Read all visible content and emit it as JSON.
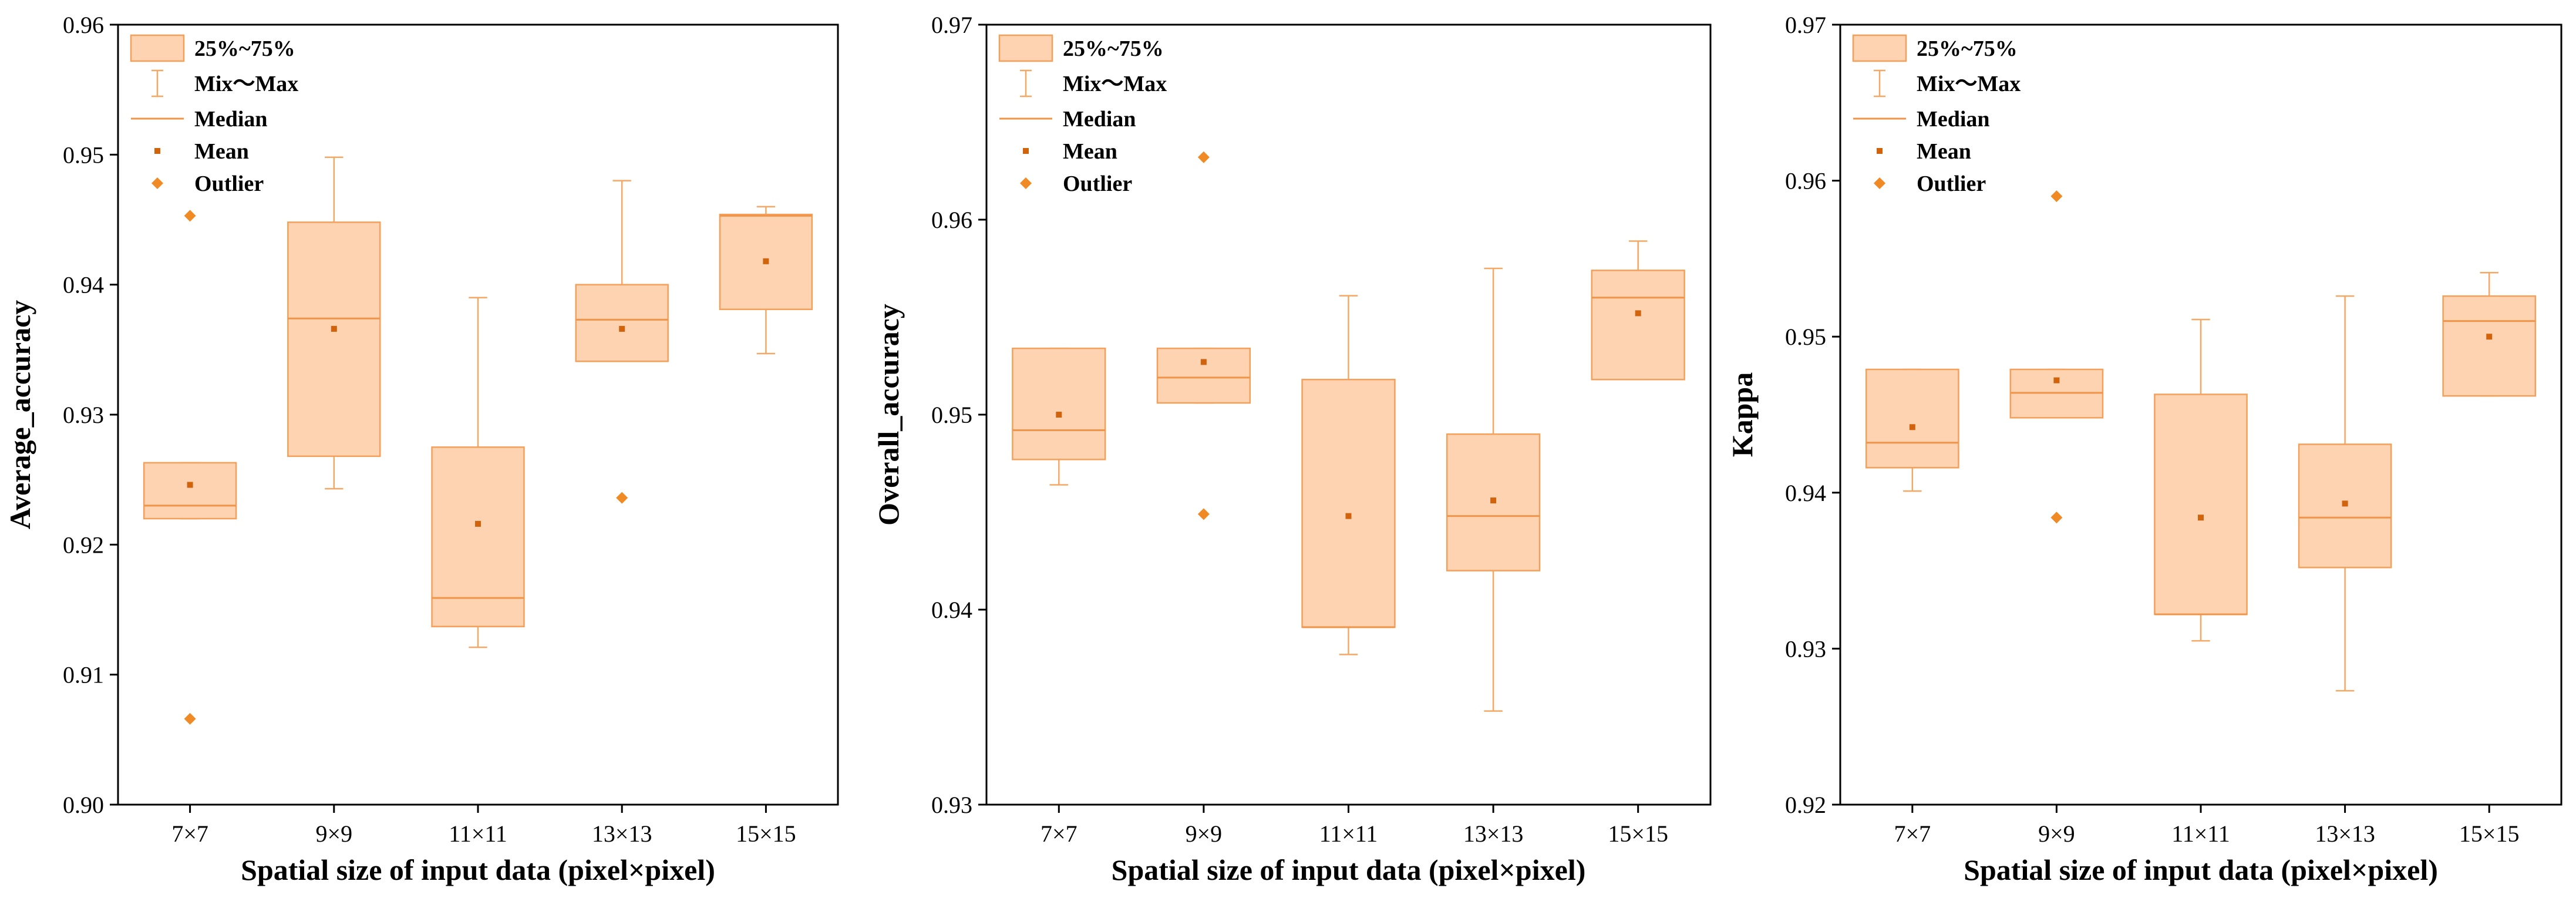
{
  "colors": {
    "box_fill": "#fdd3b2",
    "box_stroke": "#f5a05a",
    "whisker": "#f5a864",
    "median": "#f0944a",
    "mean": "#d0630c",
    "outlier": "#f08a24",
    "axis": "#000000"
  },
  "legend": {
    "box": "25%~75%",
    "whisker": "Mix～Max",
    "median": "Median",
    "mean": "Mean",
    "outlier": "Outlier"
  },
  "chart_data": [
    {
      "type": "box",
      "xlabel": "Spatial size of input data (pixel×pixel)",
      "ylabel": "Average_accuracy",
      "ylim": [
        0.9,
        0.96
      ],
      "yticks": [
        "0.90",
        "0.91",
        "0.92",
        "0.93",
        "0.94",
        "0.95",
        "0.96"
      ],
      "categories": [
        "7×7",
        "9×9",
        "11×11",
        "13×13",
        "15×15"
      ],
      "boxes": [
        {
          "q1": 0.922,
          "q3": 0.9263,
          "median": 0.923,
          "min": 0.922,
          "max": 0.9263,
          "mean": 0.9246,
          "outliers": [
            0.9453,
            0.9066
          ]
        },
        {
          "q1": 0.9268,
          "q3": 0.9448,
          "median": 0.9374,
          "min": 0.9243,
          "max": 0.9498,
          "mean": 0.9366,
          "outliers": []
        },
        {
          "q1": 0.9137,
          "q3": 0.9275,
          "median": 0.9159,
          "min": 0.9121,
          "max": 0.939,
          "mean": 0.9216,
          "outliers": []
        },
        {
          "q1": 0.9341,
          "q3": 0.94,
          "median": 0.9373,
          "min": 0.9341,
          "max": 0.948,
          "mean": 0.9366,
          "outliers": [
            0.9236
          ]
        },
        {
          "q1": 0.9381,
          "q3": 0.9454,
          "median": 0.9453,
          "min": 0.9347,
          "max": 0.946,
          "mean": 0.9418,
          "outliers": []
        }
      ]
    },
    {
      "type": "box",
      "xlabel": "Spatial size of input data (pixel×pixel)",
      "ylabel": "Overall_accuracy",
      "ylim": [
        0.93,
        0.97
      ],
      "yticks": [
        "0.93",
        "0.94",
        "0.95",
        "0.96",
        "0.97"
      ],
      "categories": [
        "7×7",
        "9×9",
        "11×11",
        "13×13",
        "15×15"
      ],
      "boxes": [
        {
          "q1": 0.9477,
          "q3": 0.9534,
          "median": 0.9492,
          "min": 0.9464,
          "max": 0.9534,
          "mean": 0.95,
          "outliers": []
        },
        {
          "q1": 0.9506,
          "q3": 0.9534,
          "median": 0.9519,
          "min": 0.9506,
          "max": 0.9534,
          "mean": 0.9527,
          "outliers": [
            0.9632,
            0.9449
          ]
        },
        {
          "q1": 0.9391,
          "q3": 0.9518,
          "median": 0.9391,
          "min": 0.9377,
          "max": 0.9561,
          "mean": 0.9448,
          "outliers": []
        },
        {
          "q1": 0.942,
          "q3": 0.949,
          "median": 0.9448,
          "min": 0.9348,
          "max": 0.9575,
          "mean": 0.9456,
          "outliers": []
        },
        {
          "q1": 0.9518,
          "q3": 0.9574,
          "median": 0.956,
          "min": 0.9518,
          "max": 0.9589,
          "mean": 0.9552,
          "outliers": []
        }
      ]
    },
    {
      "type": "box",
      "xlabel": "Spatial size of input data (pixel×pixel)",
      "ylabel": "Kappa",
      "ylim": [
        0.92,
        0.97
      ],
      "yticks": [
        "0.92",
        "0.93",
        "0.94",
        "0.95",
        "0.96",
        "0.97"
      ],
      "categories": [
        "7×7",
        "9×9",
        "11×11",
        "13×13",
        "15×15"
      ],
      "boxes": [
        {
          "q1": 0.9416,
          "q3": 0.9479,
          "median": 0.9432,
          "min": 0.9401,
          "max": 0.9479,
          "mean": 0.9442,
          "outliers": []
        },
        {
          "q1": 0.9448,
          "q3": 0.9479,
          "median": 0.9464,
          "min": 0.9448,
          "max": 0.9479,
          "mean": 0.9472,
          "outliers": [
            0.959,
            0.9384
          ]
        },
        {
          "q1": 0.9322,
          "q3": 0.9463,
          "median": 0.9322,
          "min": 0.9305,
          "max": 0.9511,
          "mean": 0.9384,
          "outliers": []
        },
        {
          "q1": 0.9352,
          "q3": 0.9431,
          "median": 0.9384,
          "min": 0.9273,
          "max": 0.9526,
          "mean": 0.9393,
          "outliers": []
        },
        {
          "q1": 0.9462,
          "q3": 0.9526,
          "median": 0.951,
          "min": 0.9462,
          "max": 0.9541,
          "mean": 0.95,
          "outliers": []
        }
      ]
    }
  ]
}
